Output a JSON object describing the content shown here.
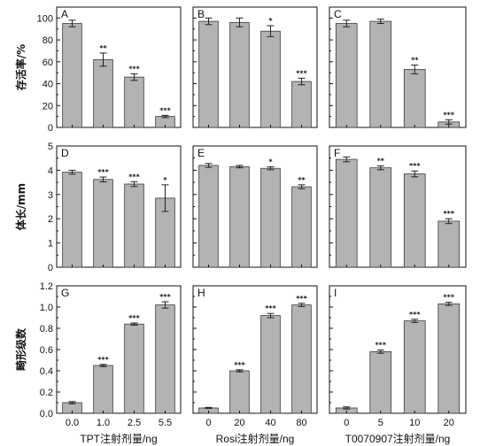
{
  "chart_data": [
    {
      "panel": "A",
      "type": "bar",
      "categories": [
        "0.0",
        "1.0",
        "2.5",
        "5.5"
      ],
      "values": [
        95,
        62,
        46,
        10
      ],
      "errors": [
        3,
        6,
        3,
        1
      ],
      "sig": [
        "",
        "**",
        "***",
        "***"
      ],
      "ylim": [
        0,
        110
      ],
      "yticks": [
        0,
        20,
        40,
        60,
        80,
        100
      ],
      "ylabel": "存活率/%"
    },
    {
      "panel": "B",
      "type": "bar",
      "categories": [
        "0",
        "20",
        "40",
        "80"
      ],
      "values": [
        97,
        96,
        88,
        42
      ],
      "errors": [
        3,
        4,
        5,
        3
      ],
      "sig": [
        "",
        "",
        "*",
        "***"
      ],
      "ylim": [
        0,
        110
      ],
      "yticks": [
        0,
        20,
        40,
        60,
        80,
        100
      ]
    },
    {
      "panel": "C",
      "type": "bar",
      "categories": [
        "0",
        "5",
        "10",
        "20"
      ],
      "values": [
        95,
        97,
        53,
        5
      ],
      "errors": [
        3,
        2,
        4,
        2
      ],
      "sig": [
        "",
        "",
        "**",
        "***"
      ],
      "ylim": [
        0,
        110
      ],
      "yticks": [
        0,
        20,
        40,
        60,
        80,
        100
      ]
    },
    {
      "panel": "D",
      "type": "bar",
      "categories": [
        "0.0",
        "1.0",
        "2.5",
        "5.5"
      ],
      "values": [
        3.92,
        3.62,
        3.43,
        2.85
      ],
      "errors": [
        0.08,
        0.1,
        0.1,
        0.55
      ],
      "sig": [
        "",
        "***",
        "***",
        "*"
      ],
      "ylim": [
        0,
        5
      ],
      "yticks": [
        0,
        1,
        2,
        3,
        4,
        5
      ],
      "ylabel": "体长/mm"
    },
    {
      "panel": "E",
      "type": "bar",
      "categories": [
        "0",
        "20",
        "40",
        "80"
      ],
      "values": [
        4.2,
        4.15,
        4.08,
        3.32
      ],
      "errors": [
        0.08,
        0.05,
        0.06,
        0.08
      ],
      "sig": [
        "",
        "",
        "*",
        "**"
      ],
      "ylim": [
        0,
        5
      ],
      "yticks": [
        0,
        1,
        2,
        3,
        4,
        5
      ]
    },
    {
      "panel": "F",
      "type": "bar",
      "categories": [
        "0",
        "5",
        "10",
        "20"
      ],
      "values": [
        4.45,
        4.1,
        3.85,
        1.9
      ],
      "errors": [
        0.1,
        0.08,
        0.12,
        0.1
      ],
      "sig": [
        "",
        "**",
        "***",
        "***"
      ],
      "ylim": [
        0,
        5
      ],
      "yticks": [
        0,
        1,
        2,
        3,
        4,
        5
      ]
    },
    {
      "panel": "G",
      "type": "bar",
      "categories": [
        "0.0",
        "1.0",
        "2.5",
        "5.5"
      ],
      "values": [
        0.1,
        0.45,
        0.84,
        1.02
      ],
      "errors": [
        0.01,
        0.01,
        0.01,
        0.03
      ],
      "sig": [
        "",
        "***",
        "***",
        "***"
      ],
      "ylim": [
        0,
        1.2
      ],
      "yticks": [
        0,
        0.2,
        0.4,
        0.6,
        0.8,
        1.0,
        1.2
      ],
      "ylabel": "畸形级数",
      "xlabel": "TPT注射剂量/ng"
    },
    {
      "panel": "H",
      "type": "bar",
      "categories": [
        "0",
        "20",
        "40",
        "80"
      ],
      "values": [
        0.05,
        0.4,
        0.92,
        1.02
      ],
      "errors": [
        0.005,
        0.01,
        0.02,
        0.015
      ],
      "sig": [
        "",
        "***",
        "***",
        "***"
      ],
      "ylim": [
        0,
        1.2
      ],
      "yticks": [
        0,
        0.2,
        0.4,
        0.6,
        0.8,
        1.0,
        1.2
      ],
      "xlabel": "Rosi注射剂量/ng"
    },
    {
      "panel": "I",
      "type": "bar",
      "categories": [
        "0",
        "5",
        "10",
        "20"
      ],
      "values": [
        0.05,
        0.58,
        0.87,
        1.03
      ],
      "errors": [
        0.01,
        0.015,
        0.015,
        0.015
      ],
      "sig": [
        "",
        "***",
        "***",
        "***"
      ],
      "ylim": [
        0,
        1.2
      ],
      "yticks": [
        0,
        0.2,
        0.4,
        0.6,
        0.8,
        1.0,
        1.2
      ],
      "xlabel": "T0070907注射剂量/ng"
    }
  ],
  "colors": {
    "bar": "#b3b3b3",
    "bar_stroke": "#3a3a3a",
    "axis": "#111111"
  }
}
